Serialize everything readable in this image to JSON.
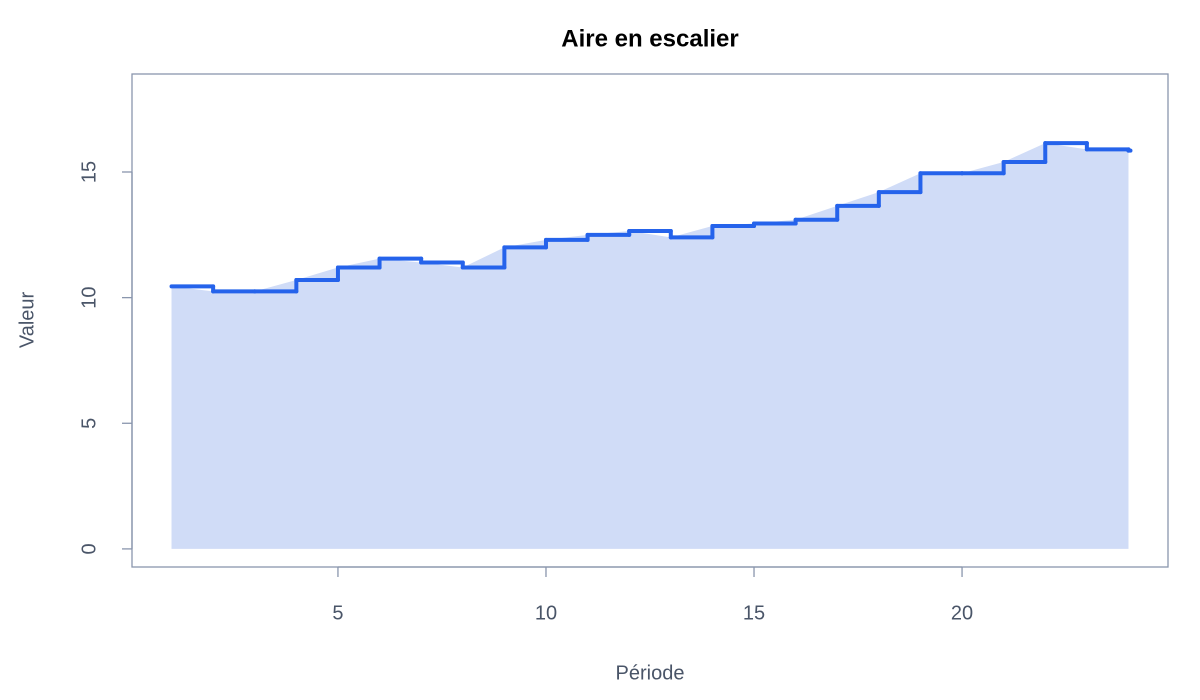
{
  "chart_data": {
    "type": "step-area",
    "title": "Aire en escalier",
    "x_label": "Période",
    "y_label": "Valeur",
    "x": [
      1,
      2,
      3,
      4,
      5,
      6,
      7,
      8,
      9,
      10,
      11,
      12,
      13,
      14,
      15,
      16,
      17,
      18,
      19,
      20,
      21,
      22,
      23,
      24
    ],
    "series": [
      {
        "name": "Valeur",
        "color": "#2563eb",
        "fill": "#d0dcf7",
        "values": [
          10.45,
          10.25,
          10.25,
          10.7,
          11.2,
          11.55,
          11.4,
          11.2,
          12.0,
          12.3,
          12.5,
          12.65,
          12.4,
          12.85,
          12.95,
          13.1,
          13.65,
          14.2,
          14.95,
          14.95,
          15.4,
          16.15,
          15.9,
          15.85
        ]
      }
    ],
    "xlim": [
      0.05,
      24.95
    ],
    "ylim": [
      -0.72,
      18.9
    ],
    "xticks": [
      5,
      10,
      15,
      20
    ],
    "yticks": [
      0,
      5,
      10,
      15
    ]
  }
}
